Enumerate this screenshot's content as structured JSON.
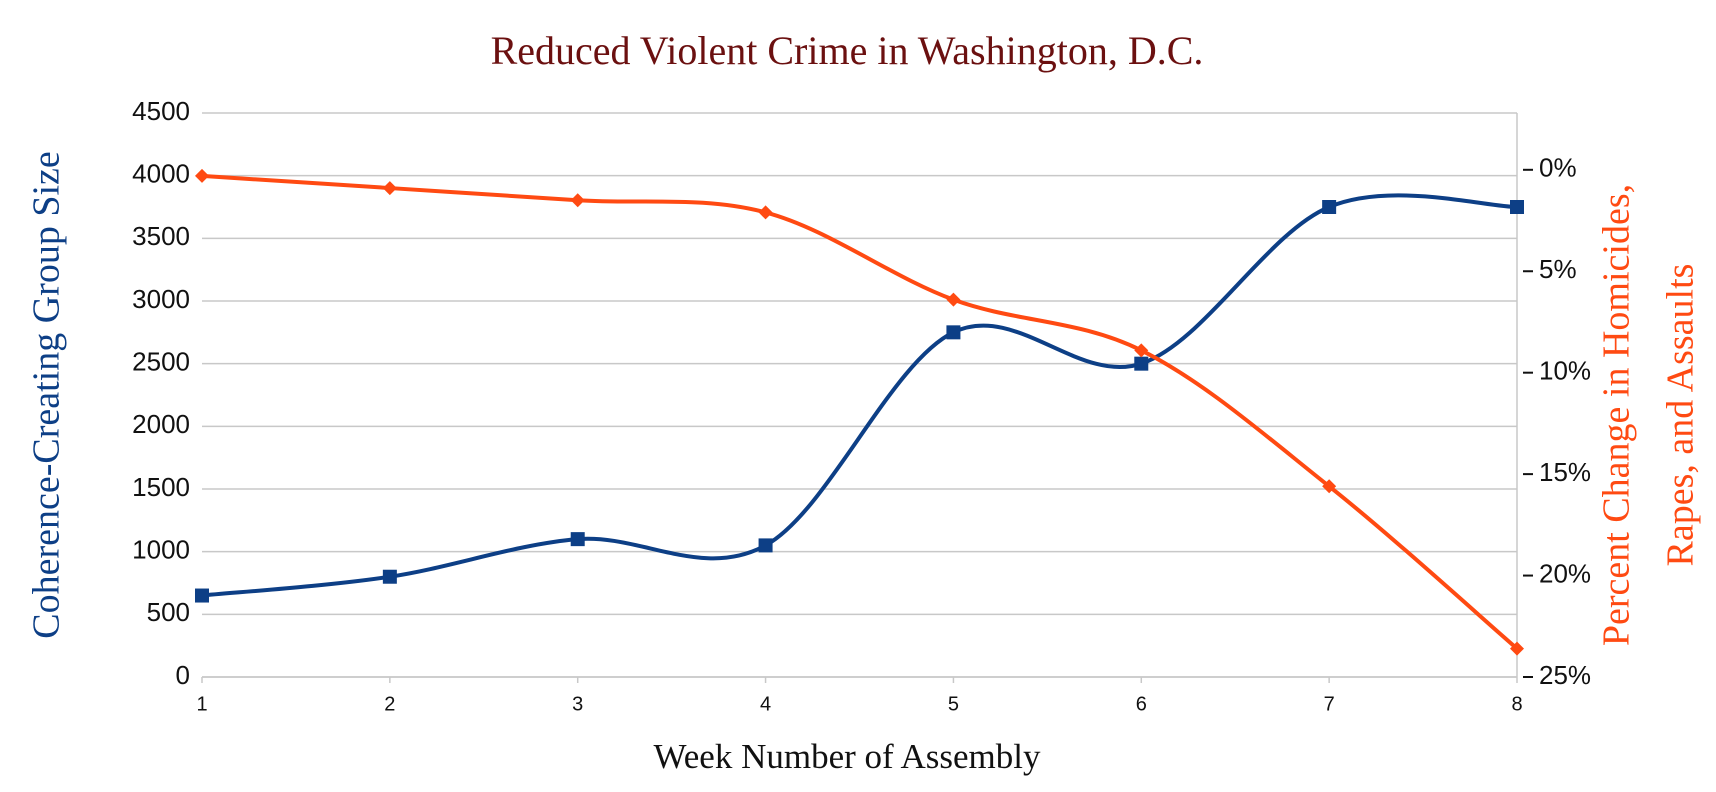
{
  "chart_data": {
    "type": "line",
    "title": "Reduced Violent Crime in Washington, D.C.",
    "x_label": "Week Number of Assembly",
    "y_label": "Coherence-Creating Group Size",
    "y2_label": [
      "Percent Change in Homicides,",
      "Rapes, and Assaults"
    ],
    "x": [
      1,
      2,
      3,
      4,
      5,
      6,
      7,
      8
    ],
    "xlim": [
      1,
      8
    ],
    "xticks": [
      1,
      2,
      3,
      4,
      5,
      6,
      7,
      8
    ],
    "ylim": [
      0,
      4500
    ],
    "yticks": [
      0,
      500,
      1000,
      1500,
      2000,
      2500,
      3000,
      3500,
      4000,
      4500
    ],
    "y2lim": [
      -25,
      2.8
    ],
    "y2ticks": [
      {
        "value": 0,
        "label": "0%"
      },
      {
        "value": -5,
        "label": "5%"
      },
      {
        "value": -10,
        "label": "10%"
      },
      {
        "value": -15,
        "label": "15%"
      },
      {
        "value": -20,
        "label": "20%"
      },
      {
        "value": -25,
        "label": "25%"
      }
    ],
    "grid": true,
    "smooth": true,
    "series": [
      {
        "name": "Group Size",
        "color": "#0d3f86",
        "marker": "square",
        "values": [
          650,
          800,
          1100,
          1050,
          2750,
          2500,
          3750,
          3750
        ]
      },
      {
        "name": "Percent Change",
        "color": "#ff4a12",
        "marker": "diamond",
        "axis": "y2",
        "values": [
          -0.3,
          -0.9,
          -1.5,
          -2.1,
          -6.4,
          -8.9,
          -15.6,
          -23.6
        ]
      }
    ]
  }
}
